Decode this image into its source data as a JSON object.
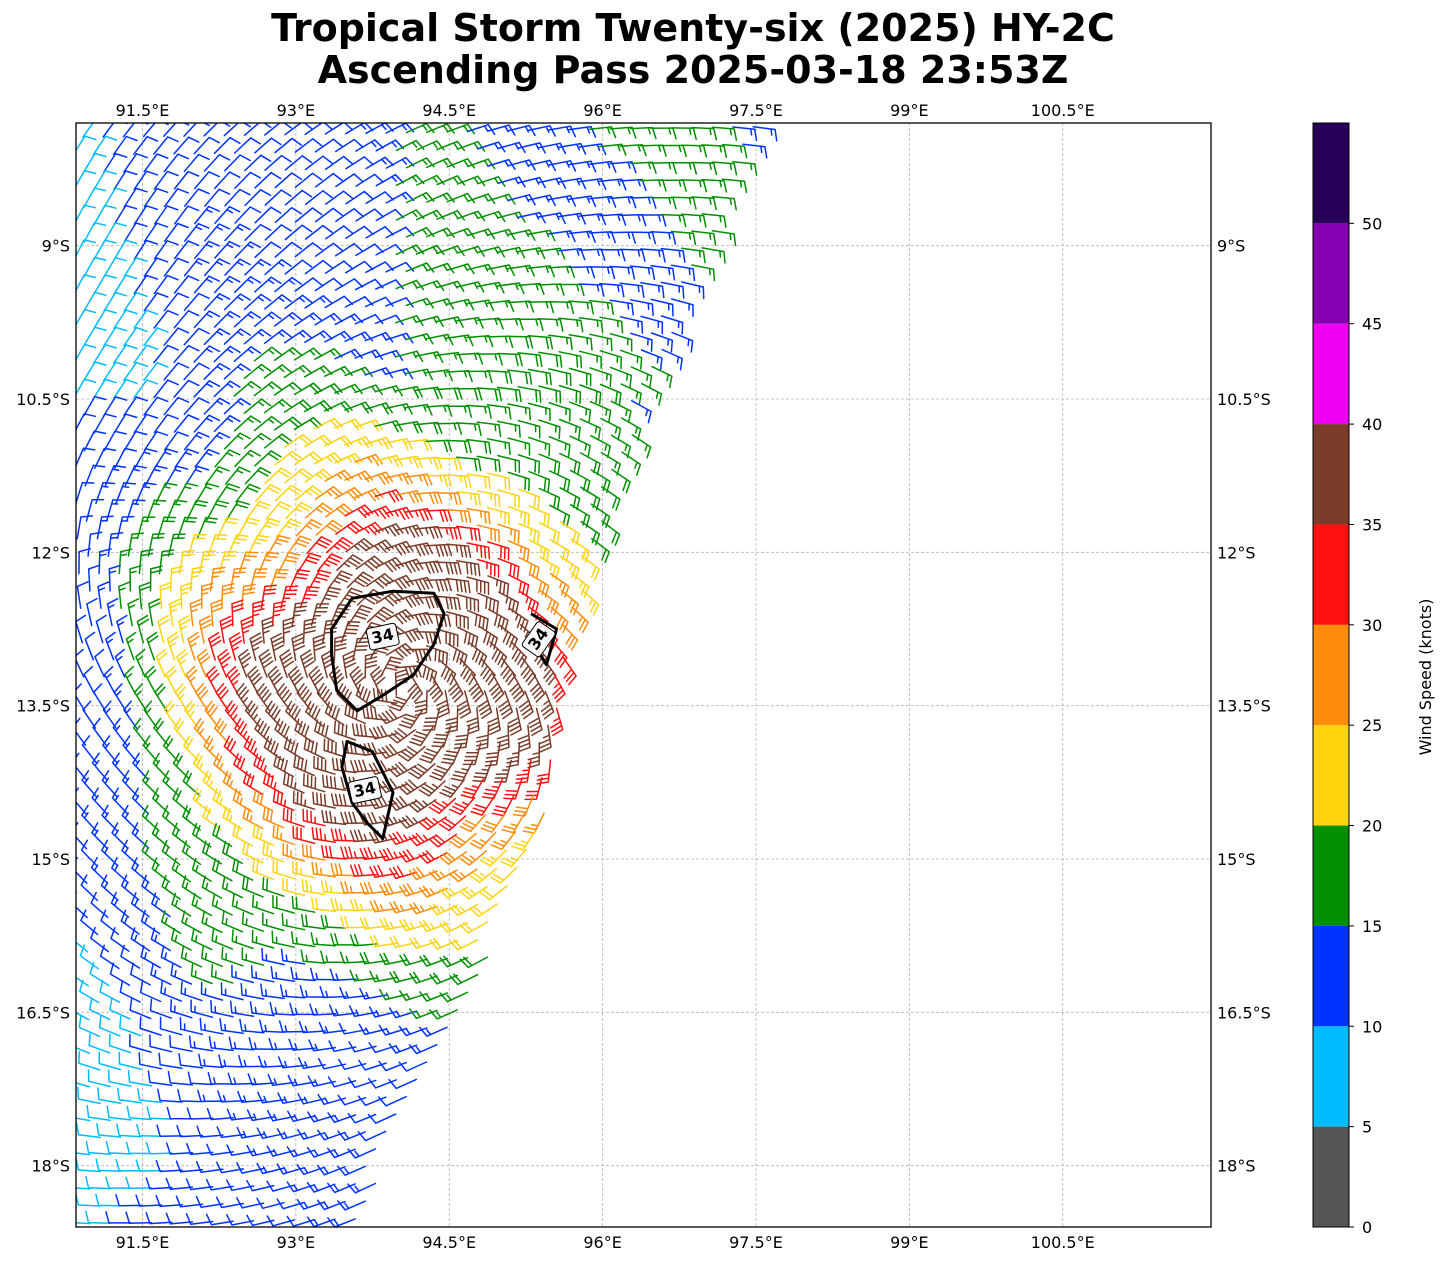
{
  "title": {
    "line1": "Tropical Storm Twenty-six (2025) HY-2C",
    "line2": "Ascending Pass 2025-03-18 23:53Z"
  },
  "map": {
    "lon_range": [
      90.85,
      101.95
    ],
    "lat_range": [
      -18.6,
      -7.8
    ],
    "lon_ticks": [
      {
        "value": 91.5,
        "label": "91.5°E"
      },
      {
        "value": 93.0,
        "label": "93°E"
      },
      {
        "value": 94.5,
        "label": "94.5°E"
      },
      {
        "value": 96.0,
        "label": "96°E"
      },
      {
        "value": 97.5,
        "label": "97.5°E"
      },
      {
        "value": 99.0,
        "label": "99°E"
      },
      {
        "value": 100.5,
        "label": "100.5°E"
      }
    ],
    "lat_ticks": [
      {
        "value": -9.0,
        "label": "9°S"
      },
      {
        "value": -10.5,
        "label": "10.5°S"
      },
      {
        "value": -12.0,
        "label": "12°S"
      },
      {
        "value": -13.5,
        "label": "13.5°S"
      },
      {
        "value": -15.0,
        "label": "15°S"
      },
      {
        "value": -16.5,
        "label": "16.5°S"
      },
      {
        "value": -18.0,
        "label": "18°S"
      }
    ],
    "gridlines": true,
    "storm_center": {
      "lon": 94.0,
      "lat": -13.3
    },
    "swath_right_edge": [
      [
        97.6,
        -7.8
      ],
      [
        96.0,
        -12.0
      ],
      [
        95.3,
        -15.0
      ],
      [
        93.5,
        -18.6
      ]
    ],
    "wind_contour": {
      "level": 34,
      "label": "34",
      "polygons": [
        [
          [
            93.55,
            -12.45
          ],
          [
            93.95,
            -12.38
          ],
          [
            94.35,
            -12.4
          ],
          [
            94.45,
            -12.6
          ],
          [
            94.35,
            -12.9
          ],
          [
            94.15,
            -13.2
          ],
          [
            93.85,
            -13.4
          ],
          [
            93.6,
            -13.55
          ],
          [
            93.4,
            -13.35
          ],
          [
            93.35,
            -13.0
          ],
          [
            93.35,
            -12.75
          ]
        ],
        [
          [
            93.5,
            -13.85
          ],
          [
            93.75,
            -13.95
          ],
          [
            93.95,
            -14.35
          ],
          [
            93.85,
            -14.8
          ],
          [
            93.7,
            -14.65
          ],
          [
            93.55,
            -14.45
          ],
          [
            93.45,
            -14.1
          ]
        ],
        [
          [
            95.3,
            -12.6
          ],
          [
            95.55,
            -12.75
          ],
          [
            95.45,
            -13.1
          ],
          [
            95.3,
            -12.85
          ]
        ]
      ]
    }
  },
  "colorbar": {
    "label": "Wind Speed (knots)",
    "bins": [
      {
        "min": 0,
        "max": 5,
        "color": "#555555"
      },
      {
        "min": 5,
        "max": 10,
        "color": "#00bbff"
      },
      {
        "min": 10,
        "max": 15,
        "color": "#0033ff"
      },
      {
        "min": 15,
        "max": 20,
        "color": "#009000"
      },
      {
        "min": 20,
        "max": 25,
        "color": "#ffd40f"
      },
      {
        "min": 25,
        "max": 30,
        "color": "#ff8c0a"
      },
      {
        "min": 30,
        "max": 35,
        "color": "#ff1010"
      },
      {
        "min": 35,
        "max": 40,
        "color": "#7a3c28"
      },
      {
        "min": 40,
        "max": 45,
        "color": "#f000f0"
      },
      {
        "min": 45,
        "max": 50,
        "color": "#8400b0"
      },
      {
        "min": 50,
        "max": 55,
        "color": "#28005a"
      }
    ],
    "ticks": [
      {
        "value": 0,
        "label": "0"
      },
      {
        "value": 5,
        "label": "5"
      },
      {
        "value": 10,
        "label": "10"
      },
      {
        "value": 15,
        "label": "15"
      },
      {
        "value": 20,
        "label": "20"
      },
      {
        "value": 25,
        "label": "25"
      },
      {
        "value": 30,
        "label": "30"
      },
      {
        "value": 35,
        "label": "35"
      },
      {
        "value": 40,
        "label": "40"
      },
      {
        "value": 45,
        "label": "45"
      },
      {
        "value": 50,
        "label": "50"
      }
    ]
  }
}
